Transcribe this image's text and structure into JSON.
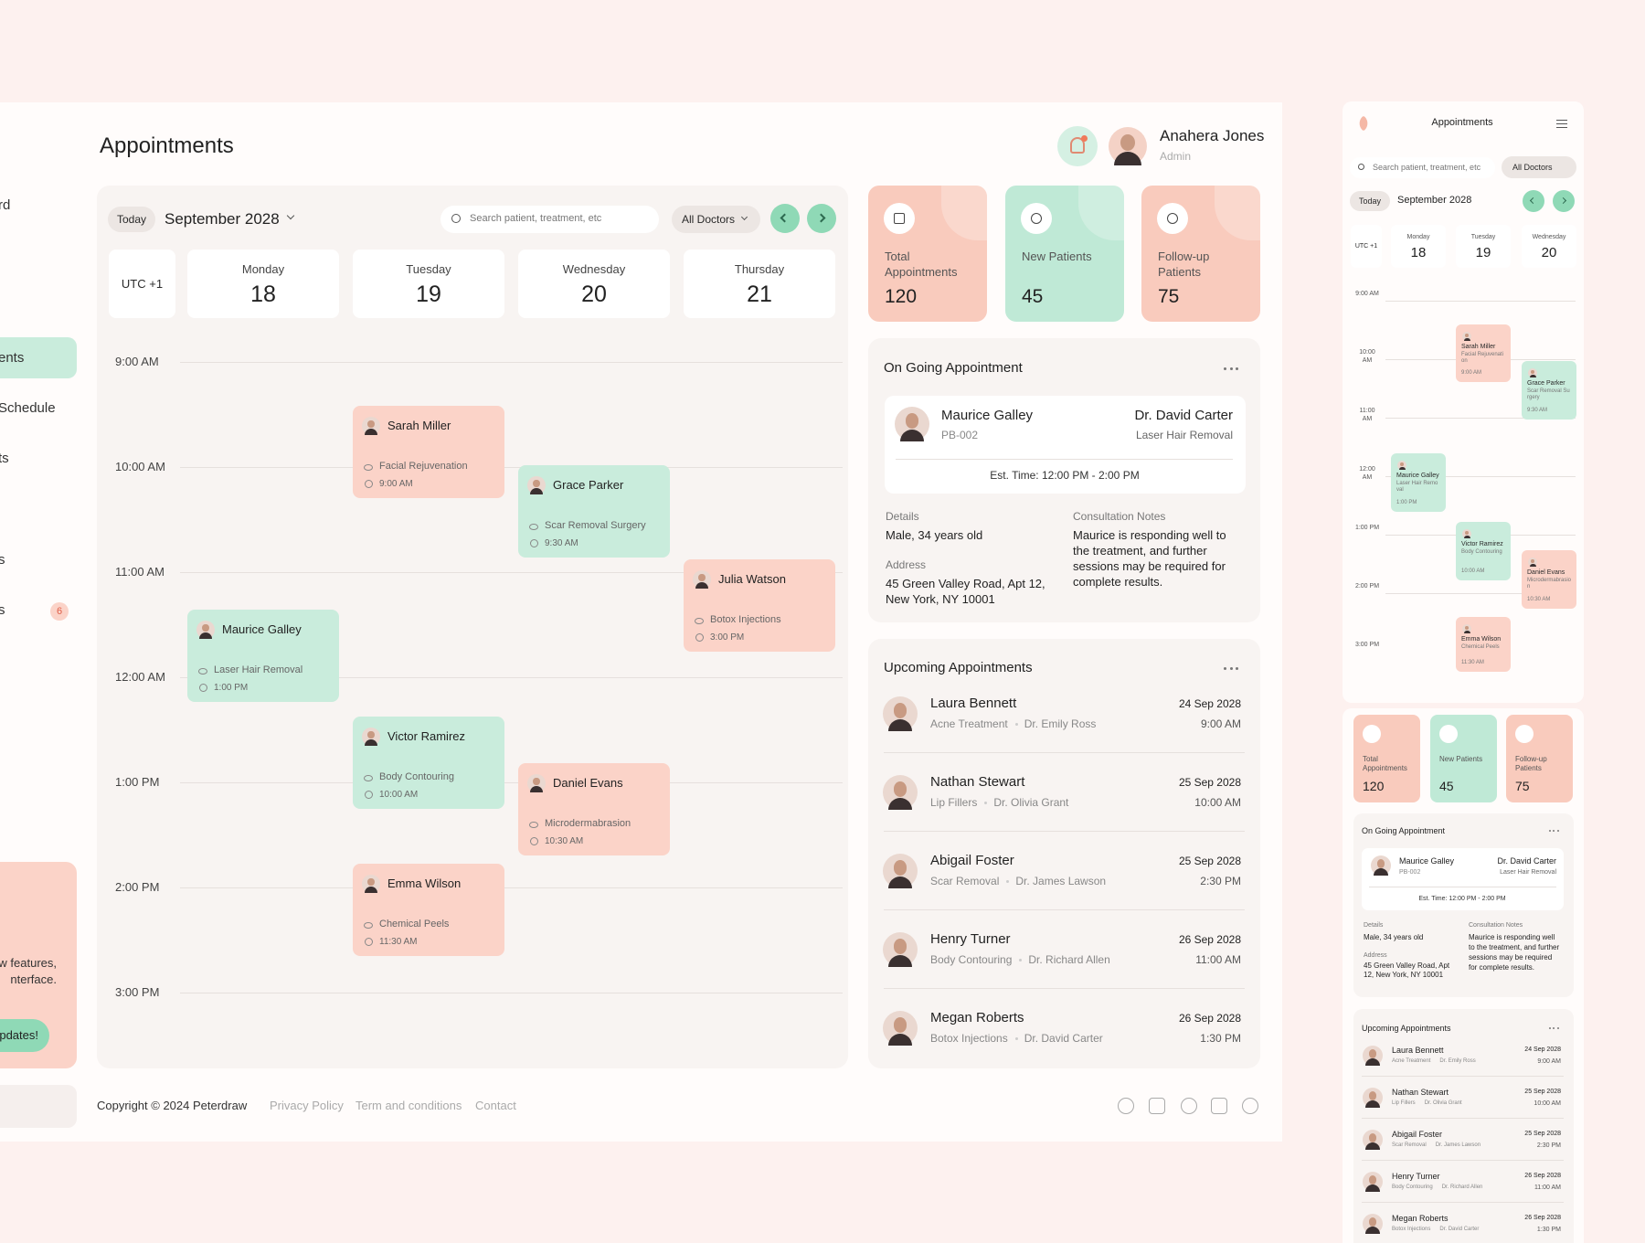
{
  "sidebar": {
    "items": [
      "rd",
      "ents",
      "Schedule",
      "ts",
      "s",
      "s"
    ],
    "badge": "6",
    "promo_text": "w features, nterface.",
    "promo_button": "pdates!"
  },
  "header": {
    "title": "Appointments",
    "user_name": "Anahera Jones",
    "user_role": "Admin"
  },
  "calendar": {
    "today": "Today",
    "month": "September 2028",
    "search_placeholder": "Search patient, treatment, etc",
    "doctor_filter": "All Doctors",
    "timezone": "UTC +1",
    "days": [
      {
        "name": "Monday",
        "date": "18"
      },
      {
        "name": "Tuesday",
        "date": "19"
      },
      {
        "name": "Wednesday",
        "date": "20"
      },
      {
        "name": "Thursday",
        "date": "21"
      }
    ],
    "times": [
      "9:00 AM",
      "10:00 AM",
      "11:00 AM",
      "12:00 AM",
      "1:00 PM",
      "2:00 PM",
      "3:00 PM"
    ],
    "events": [
      {
        "name": "Sarah Miller",
        "treatment": "Facial Rejuvenation",
        "time": "9:00 AM",
        "color": "#fbd3c8"
      },
      {
        "name": "Grace Parker",
        "treatment": "Scar Removal Surgery",
        "time": "9:30 AM",
        "color": "#c9ecdc"
      },
      {
        "name": "Julia Watson",
        "treatment": "Botox Injections",
        "time": "3:00 PM",
        "color": "#fbd3c8"
      },
      {
        "name": "Maurice Galley",
        "treatment": "Laser Hair Removal",
        "time": "1:00 PM",
        "color": "#c9ecdc"
      },
      {
        "name": "Victor Ramirez",
        "treatment": "Body Contouring",
        "time": "10:00 AM",
        "color": "#c9ecdc"
      },
      {
        "name": "Daniel Evans",
        "treatment": "Microdermabrasion",
        "time": "10:30 AM",
        "color": "#fbd3c8"
      },
      {
        "name": "Emma Wilson",
        "treatment": "Chemical Peels",
        "time": "11:30 AM",
        "color": "#fbd3c8"
      }
    ]
  },
  "stats": [
    {
      "label": "Total Appointments",
      "value": 120,
      "color": "#f9cbbd"
    },
    {
      "label": "New Patients",
      "value": 45,
      "color": "#bfe9d6"
    },
    {
      "label": "Follow-up Patients",
      "value": 75,
      "color": "#f9cbbd"
    }
  ],
  "ongoing": {
    "title": "On Going Appointment",
    "patient": "Maurice Galley",
    "id": "PB-002",
    "doctor": "Dr. David Carter",
    "treatment": "Laser Hair Removal",
    "est_time": "Est. Time: 12:00 PM - 2:00 PM",
    "details_label": "Details",
    "details": "Male, 34 years old",
    "address_label": "Address",
    "address": "45 Green Valley Road, Apt 12, New York, NY 10001",
    "notes_label": "Consultation Notes",
    "notes": "Maurice is responding well to the treatment, and further sessions may be required for complete results."
  },
  "upcoming": {
    "title": "Upcoming Appointments",
    "items": [
      {
        "name": "Laura Bennett",
        "treatment": "Acne Treatment",
        "doctor": "Dr. Emily Ross",
        "date": "24 Sep 2028",
        "time": "9:00 AM"
      },
      {
        "name": "Nathan Stewart",
        "treatment": "Lip Fillers",
        "doctor": "Dr. Olivia Grant",
        "date": "25 Sep 2028",
        "time": "10:00 AM"
      },
      {
        "name": "Abigail Foster",
        "treatment": "Scar Removal",
        "doctor": "Dr. James Lawson",
        "date": "25 Sep 2028",
        "time": "2:30 PM"
      },
      {
        "name": "Henry Turner",
        "treatment": "Body Contouring",
        "doctor": "Dr. Richard Allen",
        "date": "26 Sep 2028",
        "time": "11:00 AM"
      },
      {
        "name": "Megan Roberts",
        "treatment": "Botox Injections",
        "doctor": "Dr. David Carter",
        "date": "26 Sep 2028",
        "time": "1:30 PM"
      }
    ]
  },
  "footer": {
    "copyright": "Copyright © 2024 Peterdraw",
    "links": [
      "Privacy Policy",
      "Term and conditions",
      "Contact"
    ]
  }
}
